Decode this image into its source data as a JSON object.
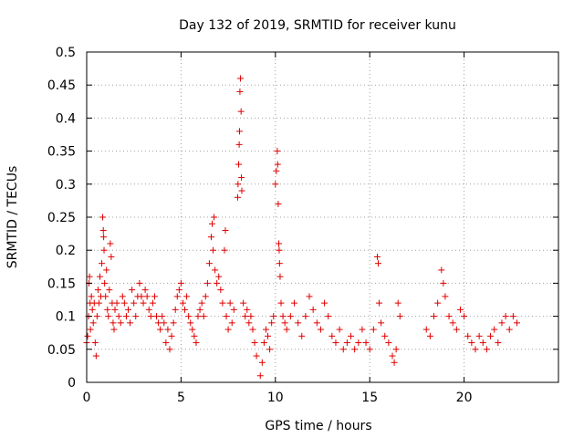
{
  "chart_data": {
    "type": "scatter",
    "title": "Day 132 of 2019, SRMTID for receiver kunu",
    "xlabel": "GPS time / hours",
    "ylabel": "SRMTID / TECUs",
    "xlim": [
      0,
      25
    ],
    "ylim": [
      0,
      0.5
    ],
    "xticks": [
      0,
      5,
      10,
      15,
      20
    ],
    "yticks": [
      0,
      0.05,
      0.1,
      0.15,
      0.2,
      0.25,
      0.3,
      0.35,
      0.4,
      0.45,
      0.5
    ],
    "xtick_labels": [
      "0",
      "5",
      "10",
      "15",
      "20"
    ],
    "ytick_labels": [
      "0",
      "0.05",
      "0.1",
      "0.15",
      "0.2",
      "0.25",
      "0.3",
      "0.35",
      "0.4",
      "0.45",
      "0.5"
    ],
    "grid": true,
    "marker": "+",
    "color": "#e00000",
    "series": [
      {
        "name": "SRMTID",
        "points": [
          [
            0.0,
            0.06
          ],
          [
            0.05,
            0.07
          ],
          [
            0.1,
            0.1
          ],
          [
            0.12,
            0.15
          ],
          [
            0.15,
            0.16
          ],
          [
            0.18,
            0.12
          ],
          [
            0.2,
            0.08
          ],
          [
            0.25,
            0.13
          ],
          [
            0.3,
            0.11
          ],
          [
            0.35,
            0.09
          ],
          [
            0.4,
            0.12
          ],
          [
            0.45,
            0.06
          ],
          [
            0.5,
            0.04
          ],
          [
            0.55,
            0.1
          ],
          [
            0.6,
            0.14
          ],
          [
            0.65,
            0.12
          ],
          [
            0.7,
            0.16
          ],
          [
            0.75,
            0.13
          ],
          [
            0.8,
            0.18
          ],
          [
            0.85,
            0.25
          ],
          [
            0.88,
            0.23
          ],
          [
            0.9,
            0.22
          ],
          [
            0.92,
            0.2
          ],
          [
            0.95,
            0.15
          ],
          [
            1.0,
            0.13
          ],
          [
            1.05,
            0.17
          ],
          [
            1.1,
            0.11
          ],
          [
            1.15,
            0.1
          ],
          [
            1.2,
            0.14
          ],
          [
            1.25,
            0.21
          ],
          [
            1.3,
            0.19
          ],
          [
            1.35,
            0.12
          ],
          [
            1.4,
            0.09
          ],
          [
            1.45,
            0.08
          ],
          [
            1.5,
            0.11
          ],
          [
            1.6,
            0.12
          ],
          [
            1.7,
            0.1
          ],
          [
            1.8,
            0.09
          ],
          [
            1.9,
            0.13
          ],
          [
            2.0,
            0.12
          ],
          [
            2.1,
            0.1
          ],
          [
            2.2,
            0.11
          ],
          [
            2.3,
            0.09
          ],
          [
            2.4,
            0.14
          ],
          [
            2.5,
            0.12
          ],
          [
            2.6,
            0.1
          ],
          [
            2.7,
            0.13
          ],
          [
            2.8,
            0.15
          ],
          [
            2.9,
            0.13
          ],
          [
            3.0,
            0.12
          ],
          [
            3.1,
            0.14
          ],
          [
            3.2,
            0.13
          ],
          [
            3.3,
            0.11
          ],
          [
            3.4,
            0.1
          ],
          [
            3.5,
            0.12
          ],
          [
            3.6,
            0.13
          ],
          [
            3.7,
            0.1
          ],
          [
            3.8,
            0.09
          ],
          [
            3.9,
            0.08
          ],
          [
            4.0,
            0.1
          ],
          [
            4.1,
            0.09
          ],
          [
            4.2,
            0.06
          ],
          [
            4.3,
            0.08
          ],
          [
            4.4,
            0.05
          ],
          [
            4.5,
            0.07
          ],
          [
            4.6,
            0.09
          ],
          [
            4.7,
            0.11
          ],
          [
            4.8,
            0.13
          ],
          [
            4.9,
            0.14
          ],
          [
            5.0,
            0.15
          ],
          [
            5.1,
            0.12
          ],
          [
            5.2,
            0.11
          ],
          [
            5.3,
            0.13
          ],
          [
            5.4,
            0.1
          ],
          [
            5.5,
            0.09
          ],
          [
            5.6,
            0.08
          ],
          [
            5.7,
            0.07
          ],
          [
            5.8,
            0.06
          ],
          [
            5.9,
            0.1
          ],
          [
            6.0,
            0.11
          ],
          [
            6.1,
            0.12
          ],
          [
            6.2,
            0.1
          ],
          [
            6.3,
            0.13
          ],
          [
            6.4,
            0.15
          ],
          [
            6.5,
            0.18
          ],
          [
            6.6,
            0.22
          ],
          [
            6.65,
            0.24
          ],
          [
            6.7,
            0.2
          ],
          [
            6.75,
            0.25
          ],
          [
            6.8,
            0.17
          ],
          [
            6.9,
            0.15
          ],
          [
            7.0,
            0.16
          ],
          [
            7.1,
            0.14
          ],
          [
            7.2,
            0.12
          ],
          [
            7.3,
            0.2
          ],
          [
            7.35,
            0.23
          ],
          [
            7.4,
            0.1
          ],
          [
            7.5,
            0.08
          ],
          [
            7.6,
            0.12
          ],
          [
            7.7,
            0.09
          ],
          [
            7.8,
            0.11
          ],
          [
            8.0,
            0.28
          ],
          [
            8.02,
            0.3
          ],
          [
            8.05,
            0.33
          ],
          [
            8.08,
            0.36
          ],
          [
            8.1,
            0.38
          ],
          [
            8.12,
            0.44
          ],
          [
            8.15,
            0.46
          ],
          [
            8.18,
            0.41
          ],
          [
            8.2,
            0.31
          ],
          [
            8.22,
            0.29
          ],
          [
            8.3,
            0.12
          ],
          [
            8.4,
            0.1
          ],
          [
            8.5,
            0.11
          ],
          [
            8.6,
            0.09
          ],
          [
            8.7,
            0.1
          ],
          [
            8.8,
            0.08
          ],
          [
            8.9,
            0.06
          ],
          [
            9.0,
            0.04
          ],
          [
            9.2,
            0.01
          ],
          [
            9.3,
            0.03
          ],
          [
            9.4,
            0.06
          ],
          [
            9.5,
            0.08
          ],
          [
            9.6,
            0.07
          ],
          [
            9.7,
            0.05
          ],
          [
            9.8,
            0.09
          ],
          [
            9.9,
            0.1
          ],
          [
            10.0,
            0.3
          ],
          [
            10.05,
            0.32
          ],
          [
            10.1,
            0.35
          ],
          [
            10.12,
            0.33
          ],
          [
            10.15,
            0.27
          ],
          [
            10.18,
            0.21
          ],
          [
            10.2,
            0.2
          ],
          [
            10.22,
            0.18
          ],
          [
            10.25,
            0.16
          ],
          [
            10.3,
            0.12
          ],
          [
            10.4,
            0.1
          ],
          [
            10.5,
            0.09
          ],
          [
            10.6,
            0.08
          ],
          [
            10.8,
            0.1
          ],
          [
            11.0,
            0.12
          ],
          [
            11.2,
            0.09
          ],
          [
            11.4,
            0.07
          ],
          [
            11.6,
            0.1
          ],
          [
            11.8,
            0.13
          ],
          [
            12.0,
            0.11
          ],
          [
            12.2,
            0.09
          ],
          [
            12.4,
            0.08
          ],
          [
            12.6,
            0.12
          ],
          [
            12.8,
            0.1
          ],
          [
            13.0,
            0.07
          ],
          [
            13.2,
            0.06
          ],
          [
            13.4,
            0.08
          ],
          [
            13.6,
            0.05
          ],
          [
            13.8,
            0.06
          ],
          [
            14.0,
            0.07
          ],
          [
            14.2,
            0.05
          ],
          [
            14.4,
            0.06
          ],
          [
            14.6,
            0.08
          ],
          [
            14.8,
            0.06
          ],
          [
            15.0,
            0.05
          ],
          [
            15.2,
            0.08
          ],
          [
            15.4,
            0.19
          ],
          [
            15.45,
            0.18
          ],
          [
            15.5,
            0.12
          ],
          [
            15.6,
            0.09
          ],
          [
            15.8,
            0.07
          ],
          [
            16.0,
            0.06
          ],
          [
            16.2,
            0.04
          ],
          [
            16.3,
            0.03
          ],
          [
            16.4,
            0.05
          ],
          [
            16.5,
            0.12
          ],
          [
            16.6,
            0.1
          ],
          [
            18.0,
            0.08
          ],
          [
            18.2,
            0.07
          ],
          [
            18.4,
            0.1
          ],
          [
            18.6,
            0.12
          ],
          [
            18.8,
            0.17
          ],
          [
            18.9,
            0.15
          ],
          [
            19.0,
            0.13
          ],
          [
            19.2,
            0.1
          ],
          [
            19.4,
            0.09
          ],
          [
            19.6,
            0.08
          ],
          [
            19.8,
            0.11
          ],
          [
            20.0,
            0.1
          ],
          [
            20.2,
            0.07
          ],
          [
            20.4,
            0.06
          ],
          [
            20.6,
            0.05
          ],
          [
            20.8,
            0.07
          ],
          [
            21.0,
            0.06
          ],
          [
            21.2,
            0.05
          ],
          [
            21.4,
            0.07
          ],
          [
            21.6,
            0.08
          ],
          [
            21.8,
            0.06
          ],
          [
            22.0,
            0.09
          ],
          [
            22.2,
            0.1
          ],
          [
            22.4,
            0.08
          ],
          [
            22.6,
            0.1
          ],
          [
            22.8,
            0.09
          ]
        ]
      }
    ]
  }
}
